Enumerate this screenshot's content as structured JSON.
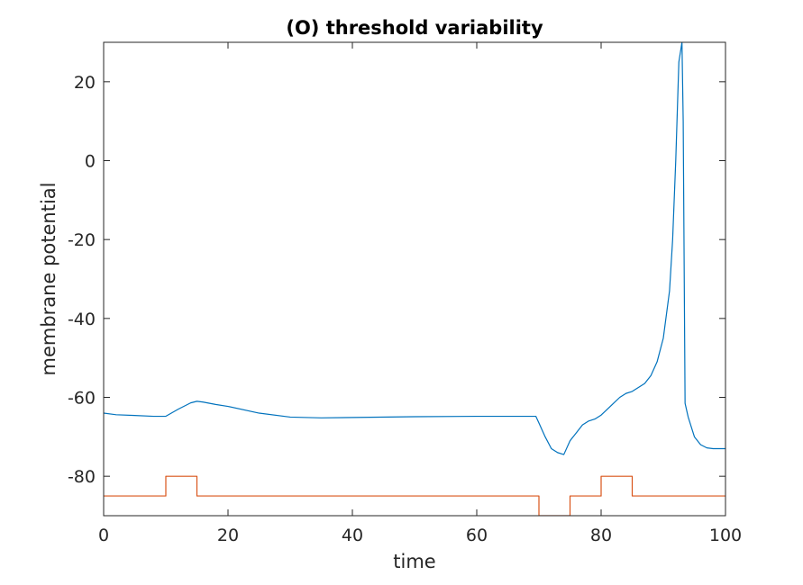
{
  "chart_data": {
    "type": "line",
    "title": "(O) threshold variability",
    "xlabel": "time",
    "ylabel": "membrane potential",
    "xlim": [
      0,
      100
    ],
    "ylim": [
      -90,
      30
    ],
    "xticks": [
      0,
      20,
      40,
      60,
      80,
      100
    ],
    "yticks": [
      -80,
      -60,
      -40,
      -20,
      0,
      20
    ],
    "grid": false,
    "series": [
      {
        "color": "#0072BD",
        "x": [
          0,
          2,
          5,
          8,
          10,
          12,
          14,
          15,
          16,
          18,
          20,
          25,
          30,
          35,
          40,
          50,
          60,
          69.5,
          70,
          71,
          72,
          73,
          74,
          75,
          76,
          77,
          78,
          79,
          80,
          81,
          82,
          83,
          84,
          85,
          86,
          87,
          88,
          89,
          90,
          91,
          91.5,
          92,
          92.5,
          93,
          93.2,
          93.5,
          94,
          95,
          96,
          97,
          98,
          99,
          100
        ],
        "y": [
          -64,
          -64.4,
          -64.6,
          -64.8,
          -64.8,
          -63,
          -61.4,
          -61,
          -61.2,
          -61.8,
          -62.3,
          -64,
          -65,
          -65.2,
          -65.1,
          -64.9,
          -64.8,
          -64.8,
          -66.5,
          -70,
          -73,
          -74,
          -74.5,
          -71,
          -69,
          -67,
          -66,
          -65.5,
          -64.5,
          -63,
          -61.5,
          -60,
          -59,
          -58.5,
          -57.5,
          -56.5,
          -54.5,
          -51,
          -45,
          -33,
          -20,
          0,
          25,
          30,
          10,
          -61.5,
          -65,
          -70,
          -72,
          -72.8,
          -73,
          -73,
          -73
        ]
      },
      {
        "color": "#D95319",
        "x": [
          0,
          10,
          10,
          15,
          15,
          70,
          70,
          75,
          75,
          80,
          80,
          85,
          85,
          100
        ],
        "y": [
          -85,
          -85,
          -80,
          -80,
          -85,
          -85,
          -90,
          -90,
          -85,
          -85,
          -80,
          -80,
          -85,
          -85
        ]
      }
    ]
  }
}
